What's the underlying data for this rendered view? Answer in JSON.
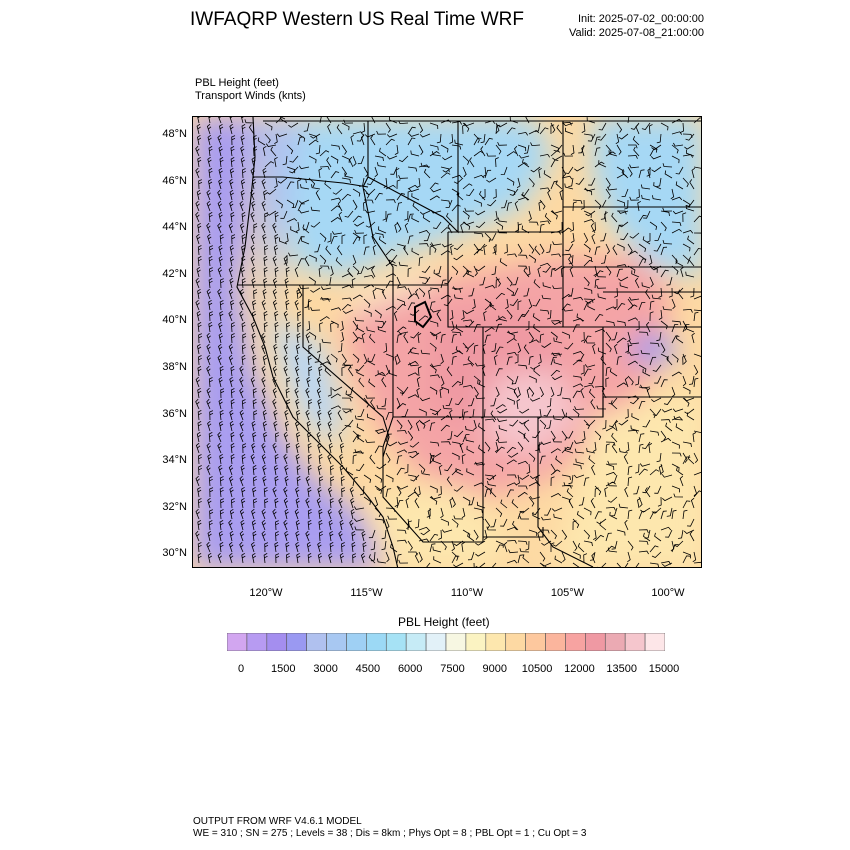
{
  "header": {
    "title": "IWFAQRP Western US Real Time WRF",
    "init": "Init: 2025-07-02_00:00:00",
    "valid": "Valid: 2025-07-08_21:00:00"
  },
  "field": {
    "label": "PBL Height   (feet)",
    "wind_label": "Transport Winds   (knts)"
  },
  "map": {
    "lat_ticks": [
      "48°N",
      "46°N",
      "44°N",
      "42°N",
      "40°N",
      "38°N",
      "36°N",
      "34°N",
      "32°N",
      "30°N"
    ],
    "lon_ticks": [
      "120°W",
      "115°W",
      "110°W",
      "105°W",
      "100°W"
    ],
    "extent": {
      "lon_min": -123.7,
      "lon_max": -98.4,
      "lat_min": 29.5,
      "lat_max": 48.8
    }
  },
  "colorbar": {
    "title": "PBL Height  (feet)",
    "tick_labels": [
      "0",
      "1500",
      "3000",
      "4500",
      "6000",
      "7500",
      "9000",
      "10500",
      "12000",
      "13500",
      "15000"
    ],
    "colors": [
      "#d2a6f0",
      "#b79bf2",
      "#a48eef",
      "#9a99f2",
      "#b0c1ef",
      "#a8c8f2",
      "#9fd0f4",
      "#9cd9f5",
      "#a6e2f5",
      "#c6ebf6",
      "#e2f1f8",
      "#f7f7e2",
      "#fbf3c2",
      "#fde7ae",
      "#fdd9a3",
      "#fdc89e",
      "#fbb59d",
      "#f7a3a1",
      "#ef99a3",
      "#ebaab3",
      "#f5c6cd",
      "#fde6e8"
    ],
    "min": 0,
    "max": 15000,
    "step": 750
  },
  "footer": {
    "line1": "OUTPUT FROM WRF V4.6.1 MODEL",
    "line2": "WE = 310 ; SN = 275 ; Levels = 38 ; Dis = 8km ; Phys Opt = 8 ; PBL Opt = 1 ; Cu Opt = 3"
  }
}
